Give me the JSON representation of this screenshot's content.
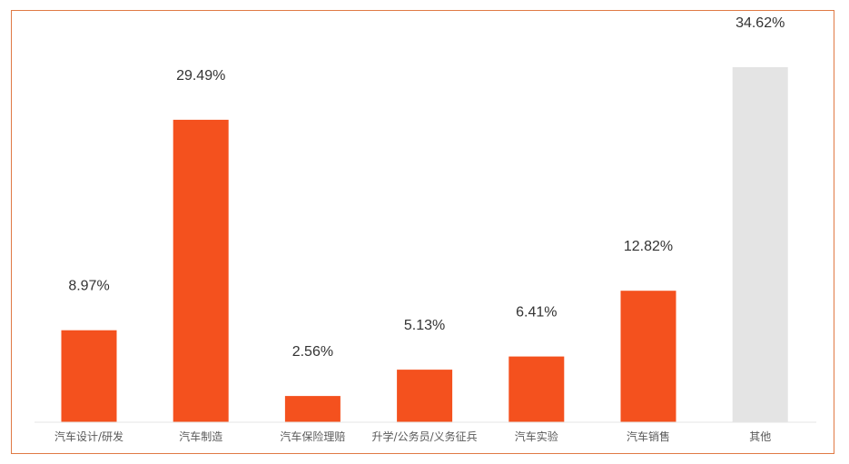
{
  "chart_data": {
    "type": "bar",
    "categories": [
      "汽车设计/研发",
      "汽车制造",
      "汽车保险理赔",
      "升学/公务员/义务征兵",
      "汽车实验",
      "汽车销售",
      "其他"
    ],
    "values": [
      8.97,
      29.49,
      2.56,
      5.13,
      6.41,
      12.82,
      34.62
    ],
    "data_labels": [
      "8.97%",
      "29.49%",
      "2.56%",
      "5.13%",
      "6.41%",
      "12.82%",
      "34.62%"
    ],
    "bar_colors": [
      "#f4511e",
      "#f4511e",
      "#f4511e",
      "#f4511e",
      "#f4511e",
      "#f4511e",
      "#e4e4e4"
    ],
    "ylim": [
      0,
      35
    ],
    "grid": false,
    "legend": "none",
    "title": "",
    "xlabel": "",
    "ylabel": ""
  },
  "colors": {
    "accent": "#f4511e",
    "other": "#e4e4e4",
    "frame": "#e07a45",
    "axis": "#e6e6e6"
  }
}
